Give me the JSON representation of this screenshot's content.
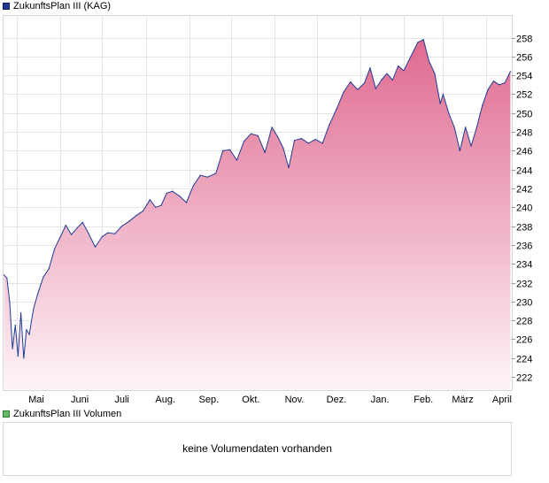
{
  "price_legend": {
    "label": "ZukunftsPlan III (KAG)",
    "color": "#1f3a93"
  },
  "volume_legend": {
    "label": "ZukunftsPlan III Volumen",
    "color": "#66bb66"
  },
  "volume_panel": {
    "message": "keine Volumendaten vorhanden"
  },
  "chart_data": {
    "type": "area",
    "series": [
      {
        "x": [
          "2025-04-22",
          "2025-04-24",
          "2025-04-26",
          "2025-04-28",
          "2025-04-30",
          "2025-05-02",
          "2025-05-04",
          "2025-05-06",
          "2025-05-08",
          "2025-05-10",
          "2025-05-13",
          "2025-05-16",
          "2025-05-20",
          "2025-05-24",
          "2025-05-28",
          "2025-06-01",
          "2025-06-05",
          "2025-06-09",
          "2025-06-13",
          "2025-06-17",
          "2025-06-21",
          "2025-06-26",
          "2025-07-01",
          "2025-07-05",
          "2025-07-10",
          "2025-07-15",
          "2025-07-20",
          "2025-07-25",
          "2025-07-30",
          "2025-08-04",
          "2025-08-08",
          "2025-08-12",
          "2025-08-16",
          "2025-08-20",
          "2025-08-25",
          "2025-08-30",
          "2025-09-04",
          "2025-09-09",
          "2025-09-14",
          "2025-09-20",
          "2025-09-25",
          "2025-09-30",
          "2025-10-05",
          "2025-10-10",
          "2025-10-15",
          "2025-10-20",
          "2025-10-25",
          "2025-10-30",
          "2025-11-03",
          "2025-11-07",
          "2025-11-11",
          "2025-11-15",
          "2025-11-20",
          "2025-11-25",
          "2025-11-30",
          "2025-12-05",
          "2025-12-10",
          "2025-12-15",
          "2025-12-20",
          "2025-12-25",
          "2025-12-30",
          "2026-01-04",
          "2026-01-08",
          "2026-01-12",
          "2026-01-16",
          "2026-01-20",
          "2026-01-24",
          "2026-01-28",
          "2026-02-01",
          "2026-02-06",
          "2026-02-11",
          "2026-02-15",
          "2026-02-19",
          "2026-02-23",
          "2026-02-27",
          "2026-03-01",
          "2026-03-05",
          "2026-03-09",
          "2026-03-13",
          "2026-03-17",
          "2026-03-21",
          "2026-03-25",
          "2026-03-29",
          "2026-04-02",
          "2026-04-06",
          "2026-04-10",
          "2026-04-14",
          "2026-04-18"
        ],
        "values": [
          232.8,
          232.5,
          230.0,
          225.0,
          227.5,
          224.2,
          228.8,
          224.0,
          227.0,
          226.5,
          229.2,
          230.8,
          232.6,
          233.5,
          235.6,
          236.8,
          238.1,
          237.1,
          237.8,
          238.4,
          237.3,
          235.8,
          236.9,
          237.3,
          237.2,
          238.0,
          238.5,
          239.1,
          239.6,
          240.8,
          240.0,
          240.2,
          241.5,
          241.7,
          241.2,
          240.5,
          242.3,
          243.4,
          243.2,
          243.6,
          246.0,
          246.1,
          245.0,
          247.0,
          247.8,
          247.6,
          245.8,
          248.5,
          247.5,
          246.3,
          244.2,
          247.1,
          247.3,
          246.8,
          247.2,
          246.8,
          248.8,
          250.4,
          252.2,
          253.3,
          252.5,
          253.2,
          254.8,
          252.6,
          253.5,
          254.2,
          253.5,
          255.0,
          254.5,
          256.0,
          257.5,
          257.8,
          255.5,
          254.2,
          251.0,
          252.0,
          250.0,
          248.5,
          246.0,
          248.5,
          246.5,
          248.5,
          250.8,
          252.5,
          253.4,
          253.0,
          253.2,
          254.4
        ]
      }
    ],
    "x_tick_labels": [
      "Mai",
      "Juni",
      "Juli",
      "Aug.",
      "Sep.",
      "Okt.",
      "Nov.",
      "Dez.",
      "Jan.",
      "Feb.",
      "März",
      "April"
    ],
    "y_ticks": [
      222,
      224,
      226,
      228,
      230,
      232,
      234,
      236,
      238,
      240,
      242,
      244,
      246,
      248,
      250,
      252,
      254,
      256,
      258
    ],
    "ylim": [
      220.6,
      260.4
    ],
    "grid": true,
    "fill_color_top": "#e06a90",
    "fill_color_bottom": "#fdf4f7",
    "line_color": "#1f3a93"
  }
}
